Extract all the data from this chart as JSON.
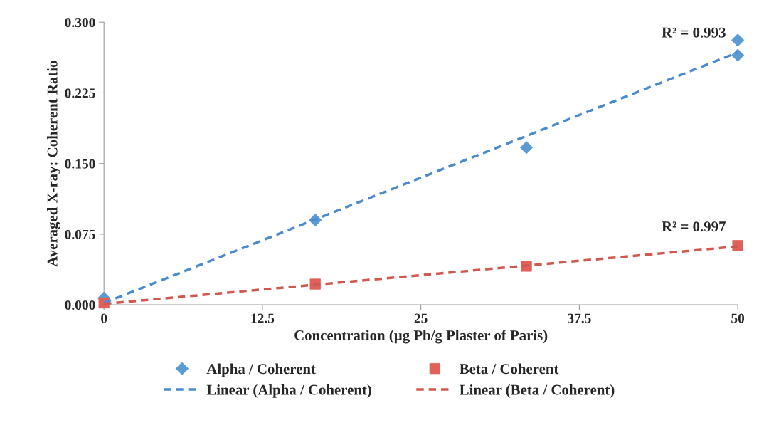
{
  "chart_data": {
    "type": "scatter",
    "xlabel": "Concentration (µg Pb/g Plaster of Paris)",
    "ylabel": "Averaged X-ray: Coherent Ratio",
    "xlim": [
      0,
      50
    ],
    "ylim": [
      0,
      0.3
    ],
    "xticks": [
      0,
      12.5,
      25,
      37.5,
      50
    ],
    "yticks": [
      {
        "value": 0,
        "label": "0.000"
      },
      {
        "value": 0.075,
        "label": "0.075"
      },
      {
        "value": 0.15,
        "label": "0.150"
      },
      {
        "value": 0.225,
        "label": "0.225"
      },
      {
        "value": 0.3,
        "label": "0.300"
      }
    ],
    "grid": false,
    "legend": "bottom",
    "series": [
      {
        "name": "Alpha / Coherent",
        "marker": "diamond",
        "color": "#5b9bd5",
        "x": [
          0,
          16.67,
          33.33,
          50,
          50
        ],
        "values": [
          0.007,
          0.09,
          0.167,
          0.281,
          0.265
        ]
      },
      {
        "name": "Beta / Coherent",
        "marker": "square",
        "color": "#e0605a",
        "x": [
          0,
          16.67,
          33.33,
          50
        ],
        "values": [
          0.002,
          0.022,
          0.041,
          0.063
        ]
      },
      {
        "name": "Linear (Alpha / Coherent)",
        "type": "line",
        "line_style": "dashed",
        "marker": "none",
        "color": "#4a8bd0",
        "x": [
          0,
          50
        ],
        "values": [
          0.002,
          0.268
        ]
      },
      {
        "name": "Linear (Beta / Coherent)",
        "type": "line",
        "line_style": "dashed",
        "marker": "none",
        "color": "#d0584f",
        "x": [
          0,
          50
        ],
        "values": [
          0.001,
          0.062
        ]
      }
    ],
    "annotations": [
      {
        "text": "R² = 0.993",
        "x": 50,
        "y": 0.268
      },
      {
        "text": "R² = 0.997",
        "x": 50,
        "y": 0.062
      }
    ]
  }
}
